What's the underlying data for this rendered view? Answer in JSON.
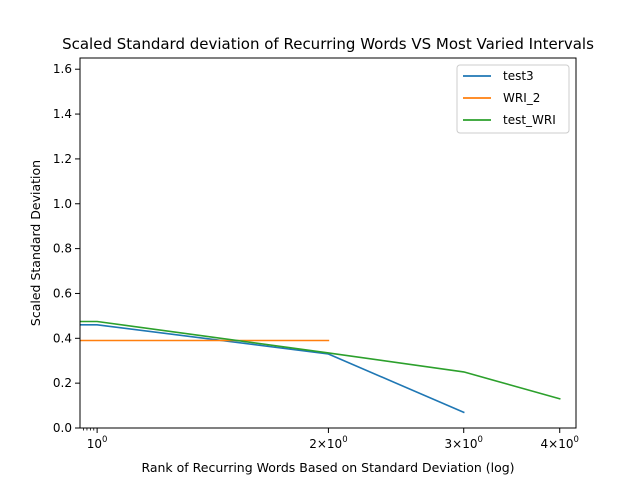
{
  "chart_data": {
    "type": "line",
    "title": "Scaled Standard deviation of Recurring Words VS Most Varied Intervals",
    "xlabel": "Rank of Recurring Words Based on Standard Deviation (log)",
    "ylabel": "Scaled Standard Deviation",
    "xscale": "log",
    "xlim": [
      0.95,
      4.2
    ],
    "ylim": [
      0.0,
      1.65
    ],
    "x_ticks": [
      {
        "value": 1,
        "label": "10^0"
      },
      {
        "value": 2,
        "label": "2×10^0"
      },
      {
        "value": 3,
        "label": "3×10^0"
      },
      {
        "value": 4,
        "label": "4×10^0"
      }
    ],
    "y_ticks": [
      "0.0",
      "0.2",
      "0.4",
      "0.6",
      "0.8",
      "1.0",
      "1.2",
      "1.4",
      "1.6"
    ],
    "legend_position": "top-right",
    "grid": false,
    "series": [
      {
        "name": "test3",
        "color": "#1f77b4",
        "x": [
          0.9,
          1,
          2,
          3
        ],
        "y": [
          0.46,
          0.46,
          0.33,
          0.07
        ]
      },
      {
        "name": "WRI_2",
        "color": "#ff7f0e",
        "x": [
          0.9,
          1,
          2
        ],
        "y": [
          0.39,
          0.39,
          0.39
        ]
      },
      {
        "name": "test_WRI",
        "color": "#2ca02c",
        "x": [
          0.9,
          1,
          2,
          3,
          4
        ],
        "y": [
          0.475,
          0.475,
          0.335,
          0.25,
          0.13
        ]
      }
    ]
  }
}
